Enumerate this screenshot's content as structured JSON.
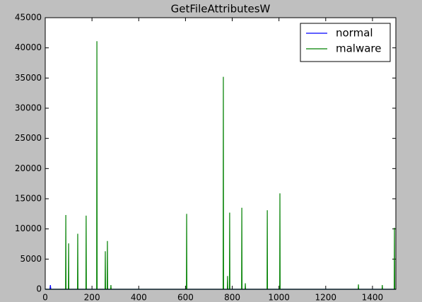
{
  "chart_data": {
    "type": "line",
    "title": "GetFileAttributesW",
    "xlim": [
      0,
      1500
    ],
    "xticks": [
      0,
      200,
      400,
      600,
      800,
      1000,
      1200,
      1400
    ],
    "ylim": [
      0,
      45000
    ],
    "yticks": [
      0,
      5000,
      10000,
      15000,
      20000,
      25000,
      30000,
      35000,
      40000,
      45000
    ],
    "legend": "upper right",
    "series": [
      {
        "name": "normal",
        "color": "#0000ff",
        "x": [
          0,
          20,
          22,
          24,
          1500
        ],
        "values": [
          0,
          0,
          700,
          0,
          0
        ]
      },
      {
        "name": "malware",
        "color": "#008000",
        "x": [
          0,
          87,
          88,
          89,
          99,
          100,
          101,
          138,
          139,
          140,
          174,
          175,
          176,
          220,
          221,
          222,
          256,
          257,
          258,
          265,
          266,
          267,
          280,
          281,
          282,
          604,
          605,
          606,
          761,
          762,
          763,
          779,
          780,
          781,
          788,
          789,
          790,
          840,
          841,
          842,
          855,
          856,
          857,
          949,
          950,
          951,
          1003,
          1004,
          1005,
          1339,
          1340,
          1341,
          1441,
          1442,
          1443,
          1493,
          1494,
          1495,
          1500
        ],
        "values": [
          0,
          0,
          12300,
          0,
          0,
          7600,
          0,
          0,
          9200,
          0,
          0,
          12200,
          0,
          0,
          41100,
          0,
          0,
          6300,
          0,
          0,
          8000,
          0,
          0,
          700,
          0,
          0,
          12500,
          0,
          0,
          35200,
          0,
          0,
          2200,
          0,
          0,
          12700,
          0,
          0,
          13500,
          0,
          0,
          1000,
          0,
          0,
          13100,
          0,
          0,
          15900,
          0,
          0,
          800,
          0,
          0,
          700,
          0,
          0,
          10200,
          0,
          0
        ]
      }
    ]
  }
}
